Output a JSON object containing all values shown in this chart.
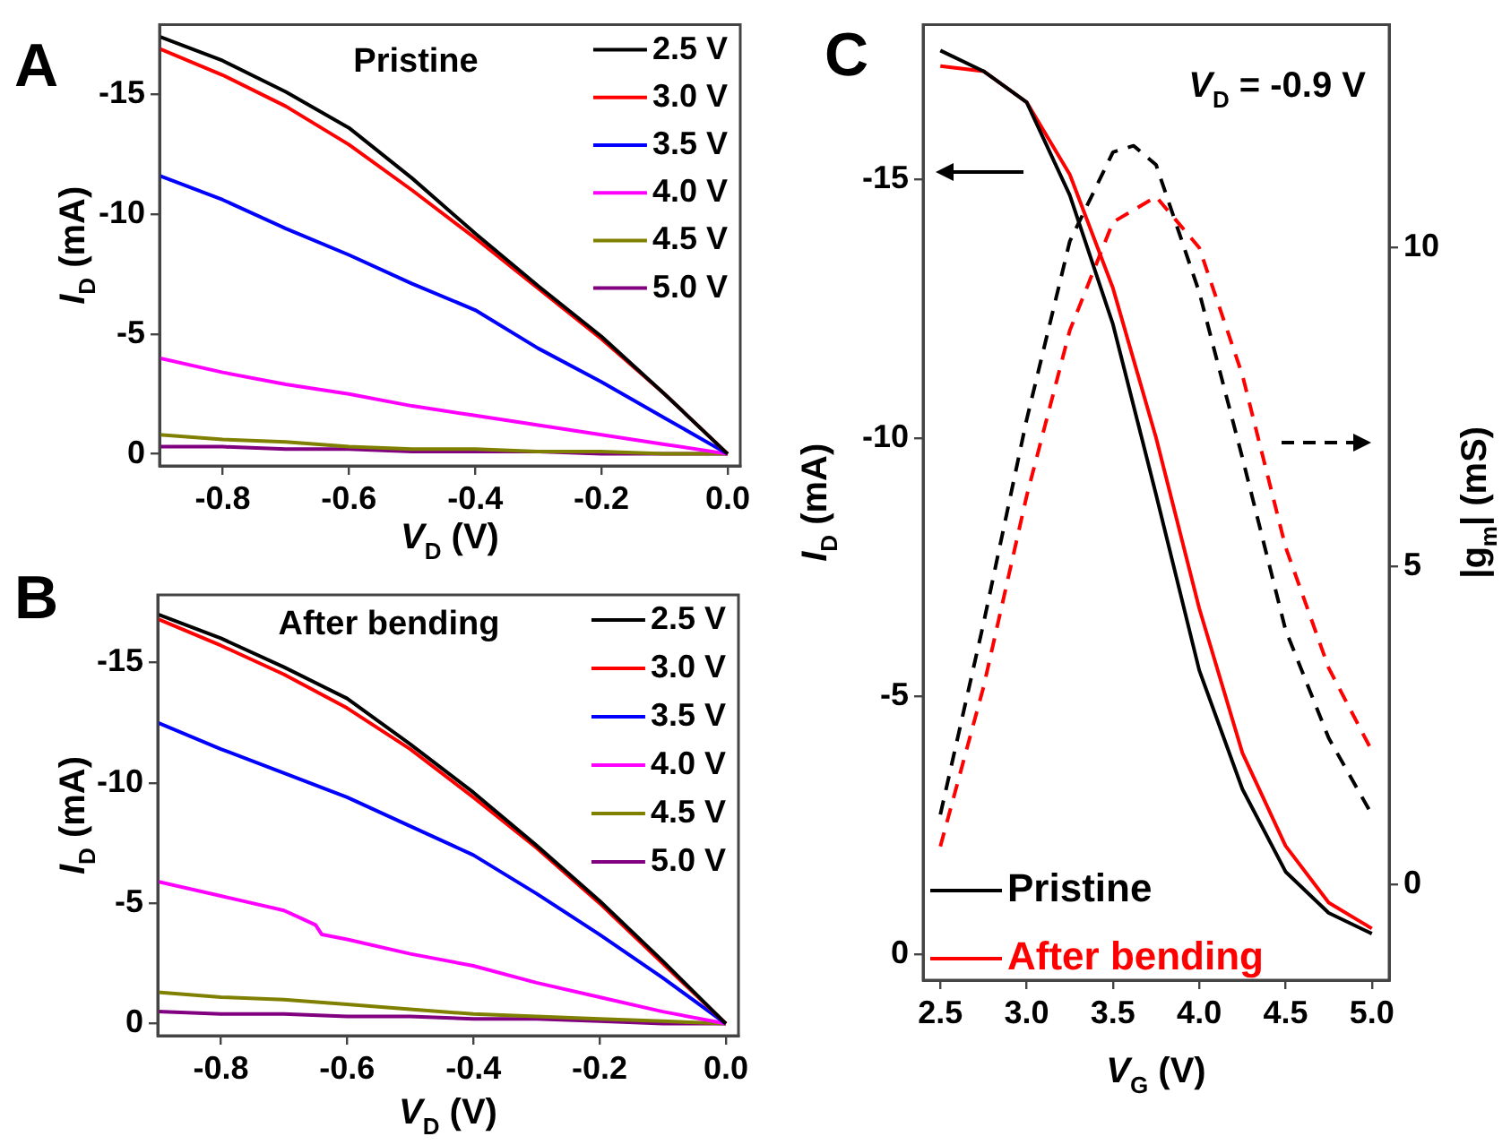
{
  "chart_data": [
    {
      "type": "line",
      "title": "Pristine",
      "xlabel": "V$_{D}$ (V)",
      "ylabel": "I$_{D}$ (mA)",
      "annotations": [
        "A"
      ],
      "x": [
        -0.9,
        -0.8,
        -0.7,
        -0.6,
        -0.5,
        -0.4,
        -0.3,
        -0.2,
        -0.1,
        0
      ],
      "series": [
        {
          "name": "2.5 V",
          "color": "#000000",
          "values": [
            -17.4,
            -16.4,
            -15.1,
            -13.6,
            -11.5,
            -9.2,
            -7.0,
            -4.9,
            -2.5,
            0
          ]
        },
        {
          "name": "3.0 V",
          "color": "#ff0000",
          "values": [
            -16.9,
            -15.8,
            -14.5,
            -12.9,
            -11.0,
            -9.0,
            -6.9,
            -4.8,
            -2.5,
            0
          ]
        },
        {
          "name": "3.5 V",
          "color": "#0000ff",
          "values": [
            -11.6,
            -10.6,
            -9.4,
            -8.3,
            -7.1,
            -6.0,
            -4.4,
            -3.0,
            -1.5,
            0
          ]
        },
        {
          "name": "4.0 V",
          "color": "#ff00ff",
          "values": [
            -4.0,
            -3.4,
            -2.9,
            -2.5,
            -2.0,
            -1.6,
            -1.2,
            -0.8,
            -0.4,
            0
          ]
        },
        {
          "name": "4.5 V",
          "color": "#808000",
          "values": [
            -0.8,
            -0.6,
            -0.5,
            -0.3,
            -0.2,
            -0.2,
            -0.1,
            -0.1,
            0,
            0
          ]
        },
        {
          "name": "5.0 V",
          "color": "#800080",
          "values": [
            -0.3,
            -0.3,
            -0.2,
            -0.2,
            -0.1,
            -0.1,
            -0.1,
            0,
            0,
            0
          ]
        }
      ],
      "xlim": [
        -0.9,
        0.02
      ],
      "ylim": [
        0.5,
        -17.9
      ],
      "xticks": [
        -0.8,
        -0.6,
        -0.4,
        -0.2,
        {
          "value": 0,
          "label": "0.0"
        }
      ],
      "yticks": [
        0,
        -5,
        -10,
        -15
      ],
      "legend": "top right",
      "marker": "none",
      "line_style": "solid"
    },
    {
      "type": "line",
      "title": "After bending",
      "xlabel": "V$_{D}$ (V)",
      "ylabel": "I$_{D}$ (mA)",
      "annotations": [
        "B"
      ],
      "x": [
        -0.9,
        -0.8,
        -0.7,
        -0.6,
        -0.5,
        -0.4,
        -0.3,
        -0.2,
        -0.1,
        0
      ],
      "series": [
        {
          "name": "2.5 V",
          "color": "#000000",
          "values": [
            -17.0,
            -16.0,
            -14.8,
            -13.5,
            -11.6,
            -9.6,
            -7.4,
            -5.1,
            -2.6,
            0
          ]
        },
        {
          "name": "3.0 V",
          "color": "#ff0000",
          "values": [
            -16.8,
            -15.7,
            -14.5,
            -13.1,
            -11.4,
            -9.4,
            -7.3,
            -5.0,
            -2.5,
            0
          ]
        },
        {
          "name": "3.5 V",
          "color": "#0000ff",
          "values": [
            -12.5,
            -11.4,
            -10.4,
            -9.4,
            -8.2,
            -7.0,
            -5.4,
            -3.7,
            -1.9,
            0
          ]
        },
        {
          "name": "4.0 V",
          "color": "#ff00ff",
          "x": [
            -0.9,
            -0.8,
            -0.7,
            -0.65,
            -0.64,
            -0.6,
            -0.5,
            -0.4,
            -0.3,
            -0.2,
            -0.1,
            0
          ],
          "values": [
            -5.9,
            -5.3,
            -4.7,
            -4.1,
            -3.7,
            -3.5,
            -2.9,
            -2.4,
            -1.7,
            -1.1,
            -0.5,
            0
          ]
        },
        {
          "name": "4.5 V",
          "color": "#808000",
          "values": [
            -1.3,
            -1.1,
            -1.0,
            -0.8,
            -0.6,
            -0.4,
            -0.3,
            -0.2,
            -0.1,
            0
          ]
        },
        {
          "name": "5.0 V",
          "color": "#800080",
          "values": [
            -0.5,
            -0.4,
            -0.4,
            -0.3,
            -0.3,
            -0.2,
            -0.2,
            -0.1,
            0,
            0
          ]
        }
      ],
      "xlim": [
        -0.9,
        0.02
      ],
      "ylim": [
        0.5,
        -17.8
      ],
      "xticks": [
        -0.8,
        -0.6,
        -0.4,
        -0.2,
        {
          "value": 0,
          "label": "0.0"
        }
      ],
      "yticks": [
        0,
        -5,
        -10,
        -15
      ],
      "legend": "top right",
      "marker": "none",
      "line_style": "solid"
    },
    {
      "type": "line",
      "xlabel": "V$_{G}$ (V)",
      "ylabel": "I$_{D}$ (mA)",
      "y2label": "|g$_{m}$| (mS)",
      "annotations": [
        "C",
        "V$_{D}$ = -0.9 V"
      ],
      "x": [
        2.5,
        2.75,
        3.0,
        3.25,
        3.5,
        3.75,
        4.0,
        4.25,
        4.5,
        4.75,
        5.0
      ],
      "series": [
        {
          "name": "Pristine",
          "color": "#000000",
          "values": [
            -17.5,
            -17.1,
            -16.5,
            -14.7,
            -12.2,
            -8.9,
            -5.5,
            -3.2,
            -1.6,
            -0.8,
            -0.4
          ]
        },
        {
          "name": "After bending",
          "color": "#ff0000",
          "values": [
            -17.2,
            -17.1,
            -16.5,
            -15.1,
            -12.9,
            -10.0,
            -6.7,
            -3.9,
            -2.1,
            -1.0,
            -0.5
          ]
        },
        {
          "color": "#000000",
          "axis": "y2",
          "line_style": "dashed",
          "x": [
            2.5,
            2.75,
            3.0,
            3.25,
            3.5,
            3.62,
            3.75,
            4.0,
            4.25,
            4.5,
            4.75,
            5.0
          ],
          "values": [
            1.1,
            4.1,
            7.3,
            10.1,
            11.5,
            11.6,
            11.3,
            9.3,
            6.7,
            4.0,
            2.3,
            1.1
          ]
        },
        {
          "color": "#ff0000",
          "axis": "y2",
          "line_style": "dashed",
          "values": [
            0.6,
            3.1,
            6.1,
            8.7,
            10.4,
            10.8,
            10.0,
            8.0,
            5.3,
            3.4,
            2.1
          ]
        }
      ],
      "xlim": [
        2.4,
        5.1
      ],
      "ylim": [
        0.5,
        -18
      ],
      "y2lim": [
        -1.5,
        13.5
      ],
      "xticks": [
        2.5,
        {
          "value": 3,
          "label": "3.0"
        },
        3.5,
        {
          "value": 4,
          "label": "4.0"
        },
        4.5,
        {
          "value": 5,
          "label": "5.0"
        }
      ],
      "yticks": [
        0,
        -5,
        -10,
        -15
      ],
      "y2ticks": [
        0,
        5,
        10
      ],
      "legend": "bottom left",
      "marker": "none",
      "line_style": "solid"
    }
  ]
}
